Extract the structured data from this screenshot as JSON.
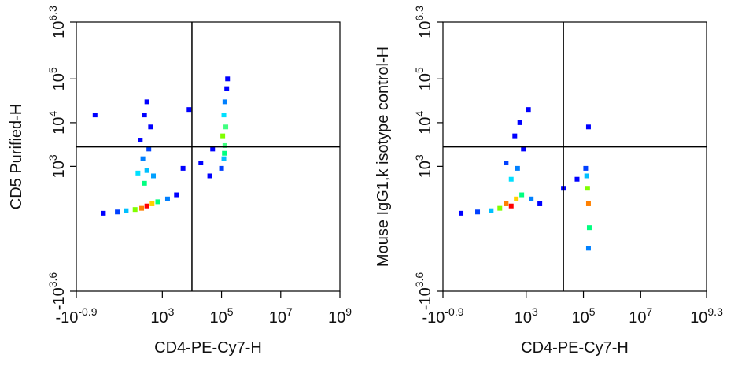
{
  "chart_data": [
    {
      "type": "scatter",
      "xscale": "biex",
      "yscale": "biex",
      "xlabel": "CD4-PE-Cy7-H",
      "ylabel": "CD5 Purified-H",
      "xlim": [
        -0.126,
        1000000000
      ],
      "ylim": [
        -3981,
        1995262
      ],
      "xticks": [
        {
          "value": -0.126,
          "label": "-10",
          "sup": "-0.9"
        },
        {
          "value": 1000,
          "label": "10",
          "sup": "3"
        },
        {
          "value": 100000,
          "label": "10",
          "sup": "5"
        },
        {
          "value": 10000000,
          "label": "10",
          "sup": "7"
        },
        {
          "value": 1000000000,
          "label": "10",
          "sup": "9"
        }
      ],
      "yticks": [
        {
          "value": -3981,
          "label": "-10",
          "sup": "3.6"
        },
        {
          "value": 1000,
          "label": "10",
          "sup": "3"
        },
        {
          "value": 10000,
          "label": "10",
          "sup": "4"
        },
        {
          "value": 100000,
          "label": "10",
          "sup": "5"
        },
        {
          "value": 1995262,
          "label": "10",
          "sup": "6.3"
        }
      ],
      "gate": {
        "x": 10000,
        "y": 2800
      },
      "x": [
        300,
        200,
        450,
        120,
        700,
        60,
        1500,
        30,
        10,
        3000,
        250,
        300,
        220,
        350,
        180,
        400,
        250,
        300,
        150,
        500,
        120000,
        130000,
        110000,
        140000,
        120000,
        130000,
        150000,
        100000,
        160000,
        125000,
        20000,
        5000,
        50000,
        8000,
        5,
        40000
      ],
      "values": [
        80,
        60,
        100,
        50,
        120,
        40,
        150,
        30,
        20,
        200,
        400,
        800,
        1500,
        2500,
        4000,
        8000,
        15000,
        30000,
        700,
        600,
        1500,
        3000,
        5000,
        8000,
        15000,
        30000,
        60000,
        900,
        100000,
        2000,
        1200,
        900,
        2500,
        20000,
        15000,
        600
      ],
      "colors": [
        "#ff0000",
        "#ff8000",
        "#ffd000",
        "#80ff00",
        "#00ff80",
        "#00c0ff",
        "#0080ff",
        "#0040ff",
        "#0000ff",
        "#0000ff",
        "#00ff80",
        "#00c0ff",
        "#0080ff",
        "#0040ff",
        "#0000ff",
        "#0000ff",
        "#0000ff",
        "#0000ff",
        "#00e0ff",
        "#00a0ff",
        "#00c0ff",
        "#40ff80",
        "#80ff00",
        "#40ff80",
        "#00e0ff",
        "#0080ff",
        "#0000ff",
        "#0040ff",
        "#0000ff",
        "#00ff80",
        "#0000ff",
        "#0000ff",
        "#0000ff",
        "#0000ff",
        "#0000ff",
        "#0000ff"
      ]
    },
    {
      "type": "scatter",
      "xscale": "biex",
      "yscale": "biex",
      "xlabel": "CD4-PE-Cy7-H",
      "ylabel": "Mouse IgG1,k isotype control-H",
      "xlim": [
        -0.126,
        1995262315
      ],
      "ylim": [
        -3981,
        1995262
      ],
      "xticks": [
        {
          "value": -0.126,
          "label": "-10",
          "sup": "-0.9"
        },
        {
          "value": 1000,
          "label": "10",
          "sup": "3"
        },
        {
          "value": 100000,
          "label": "10",
          "sup": "5"
        },
        {
          "value": 10000000,
          "label": "10",
          "sup": "7"
        },
        {
          "value": 1995262315,
          "label": "10",
          "sup": "9.3"
        }
      ],
      "yticks": [
        {
          "value": -3981,
          "label": "-10",
          "sup": "3.6"
        },
        {
          "value": 1000,
          "label": "10",
          "sup": "3"
        },
        {
          "value": 10000,
          "label": "10",
          "sup": "4"
        },
        {
          "value": 100000,
          "label": "10",
          "sup": "5"
        },
        {
          "value": 1995262,
          "label": "10",
          "sup": "6.3"
        }
      ],
      "gate": {
        "x": 20000,
        "y": 2800
      },
      "x": [
        300,
        200,
        450,
        120,
        700,
        60,
        1500,
        20,
        5,
        3000,
        300,
        500,
        200,
        800,
        400,
        1200,
        150000,
        140000,
        160000,
        130000,
        150000,
        120000,
        20000,
        60000,
        150000,
        600
      ],
      "values": [
        80,
        100,
        150,
        60,
        200,
        40,
        150,
        30,
        20,
        100,
        500,
        900,
        1200,
        2500,
        5000,
        20000,
        100,
        300,
        -100,
        600,
        -400,
        900,
        300,
        500,
        8000,
        10000
      ],
      "colors": [
        "#ff0000",
        "#ff8000",
        "#ffd000",
        "#80ff00",
        "#00ff80",
        "#00c0ff",
        "#0080ff",
        "#0040ff",
        "#0000ff",
        "#0000ff",
        "#00e0ff",
        "#0080ff",
        "#0040ff",
        "#0000ff",
        "#0000ff",
        "#0000ff",
        "#ff8000",
        "#80ff00",
        "#00ff80",
        "#00c0ff",
        "#0080ff",
        "#0040ff",
        "#0000ff",
        "#0000ff",
        "#0000ff",
        "#0000ff"
      ]
    }
  ]
}
